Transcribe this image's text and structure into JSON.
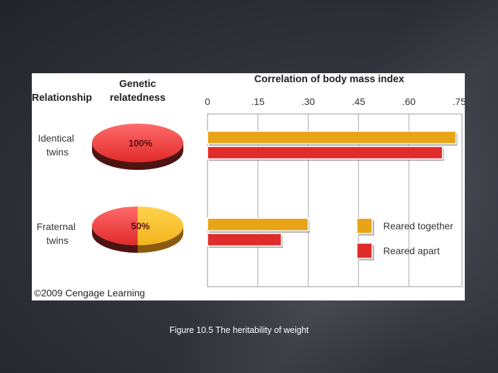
{
  "caption": "Figure 10.5 The heritability of weight",
  "chart_data": {
    "type": "bar",
    "orientation": "horizontal",
    "title": "Correlation of body mass index",
    "column_headers": {
      "relationship": "Relationship",
      "relatedness": "Genetic relatedness"
    },
    "categories": [
      {
        "label_line1": "Identical",
        "label_line2": "twins",
        "relatedness": "100%",
        "relatedness_fraction": 1.0
      },
      {
        "label_line1": "Fraternal",
        "label_line2": "twins",
        "relatedness": "50%",
        "relatedness_fraction": 0.5
      }
    ],
    "series": [
      {
        "name": "Reared together",
        "color": "#e8a317",
        "values": [
          0.74,
          0.3
        ]
      },
      {
        "name": "Reared apart",
        "color": "#e02b2b",
        "values": [
          0.7,
          0.22
        ]
      }
    ],
    "xlim": [
      0,
      0.75
    ],
    "ticks": [
      {
        "value": 0,
        "label": "0"
      },
      {
        "value": 0.15,
        "label": ".15"
      },
      {
        "value": 0.3,
        "label": ".30"
      },
      {
        "value": 0.45,
        "label": ".45"
      },
      {
        "value": 0.6,
        "label": ".60"
      },
      {
        "value": 0.75,
        "label": ".75"
      }
    ],
    "grid": true,
    "legend_position": "bottom-right",
    "copyright": "©2009 Cengage Learning"
  }
}
